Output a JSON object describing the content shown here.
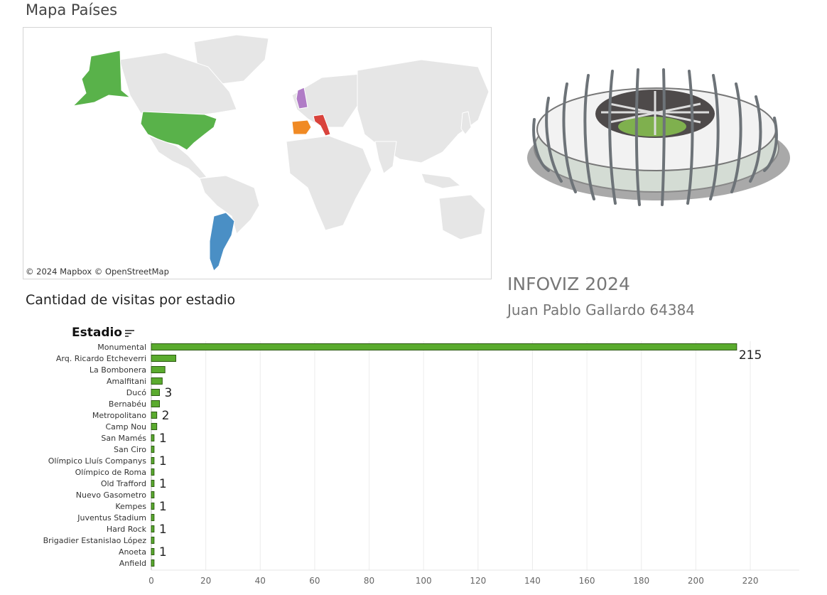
{
  "map": {
    "title": "Mapa Países",
    "credit": "© 2024 Mapbox  © OpenStreetMap",
    "highlight_colors": {
      "usa": "#59b24a",
      "argentina": "#4a8fc5",
      "spain": "#f08a24",
      "italy": "#d9433c",
      "uk": "#b07cc6"
    }
  },
  "info": {
    "title": "INFOVIZ 2024",
    "author": "Juan Pablo Gallardo 64384"
  },
  "chart_data": {
    "type": "bar",
    "orientation": "horizontal",
    "title": "Cantidad de visitas por estadio",
    "ylabel": "Estadio",
    "xlabel": "",
    "categories": [
      "Monumental",
      "Arq. Ricardo Etcheverri",
      "La Bombonera",
      "Amalfitani",
      "Ducó",
      "Bernabéu",
      "Metropolitano",
      "Camp Nou",
      "San Mamés",
      "San Ciro",
      "Olímpico Lluís Companys",
      "Olímpico de Roma",
      "Old Trafford",
      "Nuevo Gasometro",
      "Kempes",
      "Juventus Stadium",
      "Hard Rock",
      "Brigadier Estanislao López",
      "Anoeta",
      "Anfield"
    ],
    "values": [
      215,
      9,
      5,
      4,
      3,
      3,
      2,
      2,
      1,
      1,
      1,
      1,
      1,
      1,
      1,
      1,
      1,
      1,
      1,
      1
    ],
    "labels": [
      "215",
      "",
      "",
      "",
      "3",
      "",
      "2",
      "",
      "1",
      "",
      "1",
      "",
      "1",
      "",
      "1",
      "",
      "1",
      "",
      "1",
      ""
    ],
    "xlim": [
      0,
      238
    ],
    "xticks": [
      0,
      20,
      40,
      60,
      80,
      100,
      120,
      140,
      160,
      180,
      200,
      220
    ],
    "grid": true,
    "bar_color": "#5aab2e"
  }
}
